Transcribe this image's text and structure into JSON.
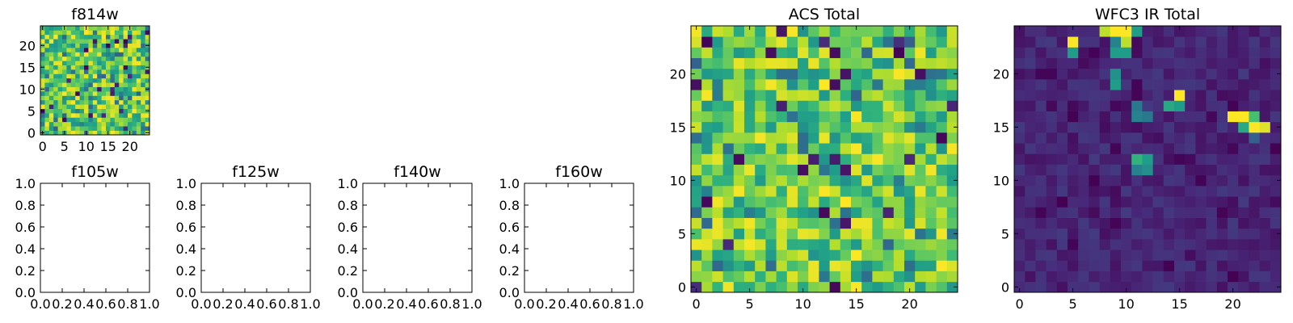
{
  "chart_data": [
    {
      "id": "f814w",
      "type": "heatmap",
      "title": "f814w",
      "xlim": [
        -0.5,
        24.5
      ],
      "ylim": [
        -0.5,
        24.5
      ],
      "xticks": [
        0,
        5,
        10,
        15,
        20
      ],
      "yticks": [
        0,
        5,
        10,
        15,
        20
      ],
      "colormap": "viridis",
      "pattern": "noise_high",
      "seed": 814
    },
    {
      "id": "f105w",
      "type": "heatmap",
      "title": "f105w",
      "empty": true,
      "xlim": [
        0,
        1
      ],
      "ylim": [
        0,
        1
      ],
      "xticks": [
        "0.0",
        "0.2",
        "0.4",
        "0.6",
        "0.8",
        "1.0"
      ],
      "yticks": [
        "0.0",
        "0.2",
        "0.4",
        "0.6",
        "0.8",
        "1.0"
      ]
    },
    {
      "id": "f125w",
      "type": "heatmap",
      "title": "f125w",
      "empty": true,
      "xlim": [
        0,
        1
      ],
      "ylim": [
        0,
        1
      ],
      "xticks": [
        "0.0",
        "0.2",
        "0.4",
        "0.6",
        "0.8",
        "1.0"
      ],
      "yticks": [
        "0.0",
        "0.2",
        "0.4",
        "0.6",
        "0.8",
        "1.0"
      ]
    },
    {
      "id": "f140w",
      "type": "heatmap",
      "title": "f140w",
      "empty": true,
      "xlim": [
        0,
        1
      ],
      "ylim": [
        0,
        1
      ],
      "xticks": [
        "0.0",
        "0.2",
        "0.4",
        "0.6",
        "0.8",
        "1.0"
      ],
      "yticks": [
        "0.0",
        "0.2",
        "0.4",
        "0.6",
        "0.8",
        "1.0"
      ]
    },
    {
      "id": "f160w",
      "type": "heatmap",
      "title": "f160w",
      "empty": true,
      "xlim": [
        0,
        1
      ],
      "ylim": [
        0,
        1
      ],
      "xticks": [
        "0.0",
        "0.2",
        "0.4",
        "0.6",
        "0.8",
        "1.0"
      ],
      "yticks": [
        "0.0",
        "0.2",
        "0.4",
        "0.6",
        "0.8",
        "1.0"
      ]
    },
    {
      "id": "acs_total",
      "type": "heatmap",
      "title": "ACS Total",
      "xlim": [
        -0.5,
        24.5
      ],
      "ylim": [
        -0.5,
        24.5
      ],
      "xticks": [
        0,
        5,
        10,
        15,
        20
      ],
      "yticks": [
        0,
        5,
        10,
        15,
        20
      ],
      "colormap": "viridis",
      "pattern": "noise_high",
      "seed": 2024
    },
    {
      "id": "wfc3_ir_total",
      "type": "heatmap",
      "title": "WFC3 IR Total",
      "xlim": [
        -0.5,
        24.5
      ],
      "ylim": [
        -0.5,
        24.5
      ],
      "xticks": [
        0,
        5,
        10,
        15,
        20
      ],
      "yticks": [
        0,
        5,
        10,
        15,
        20
      ],
      "colormap": "viridis",
      "pattern": "low_with_hotspots",
      "seed": 3,
      "hotspots": [
        {
          "x": 9,
          "y": 24,
          "v": 1.0
        },
        {
          "x": 10,
          "y": 24,
          "v": 1.0
        },
        {
          "x": 8,
          "y": 24,
          "v": 0.9
        },
        {
          "x": 11,
          "y": 24,
          "v": 0.55
        },
        {
          "x": 10,
          "y": 23,
          "v": 0.9
        },
        {
          "x": 5,
          "y": 23,
          "v": 1.0
        },
        {
          "x": 5,
          "y": 22,
          "v": 0.55
        },
        {
          "x": 9,
          "y": 23,
          "v": 0.45
        },
        {
          "x": 9,
          "y": 22,
          "v": 0.55
        },
        {
          "x": 10,
          "y": 22,
          "v": 0.55
        },
        {
          "x": 9,
          "y": 19,
          "v": 0.55
        },
        {
          "x": 9,
          "y": 20,
          "v": 0.5
        },
        {
          "x": 15,
          "y": 18,
          "v": 1.0
        },
        {
          "x": 14,
          "y": 17,
          "v": 0.6
        },
        {
          "x": 15,
          "y": 17,
          "v": 0.55
        },
        {
          "x": 11,
          "y": 17,
          "v": 0.4
        },
        {
          "x": 11,
          "y": 16,
          "v": 0.45
        },
        {
          "x": 12,
          "y": 16,
          "v": 0.4
        },
        {
          "x": 20,
          "y": 16,
          "v": 1.0
        },
        {
          "x": 21,
          "y": 16,
          "v": 1.0
        },
        {
          "x": 22,
          "y": 16,
          "v": 0.7
        },
        {
          "x": 21,
          "y": 15,
          "v": 0.6
        },
        {
          "x": 22,
          "y": 15,
          "v": 1.0
        },
        {
          "x": 23,
          "y": 15,
          "v": 0.95
        },
        {
          "x": 22,
          "y": 14,
          "v": 0.3
        },
        {
          "x": 11,
          "y": 12,
          "v": 0.65
        },
        {
          "x": 12,
          "y": 12,
          "v": 0.55
        },
        {
          "x": 11,
          "y": 11,
          "v": 0.45
        },
        {
          "x": 12,
          "y": 11,
          "v": 0.5
        }
      ]
    }
  ]
}
